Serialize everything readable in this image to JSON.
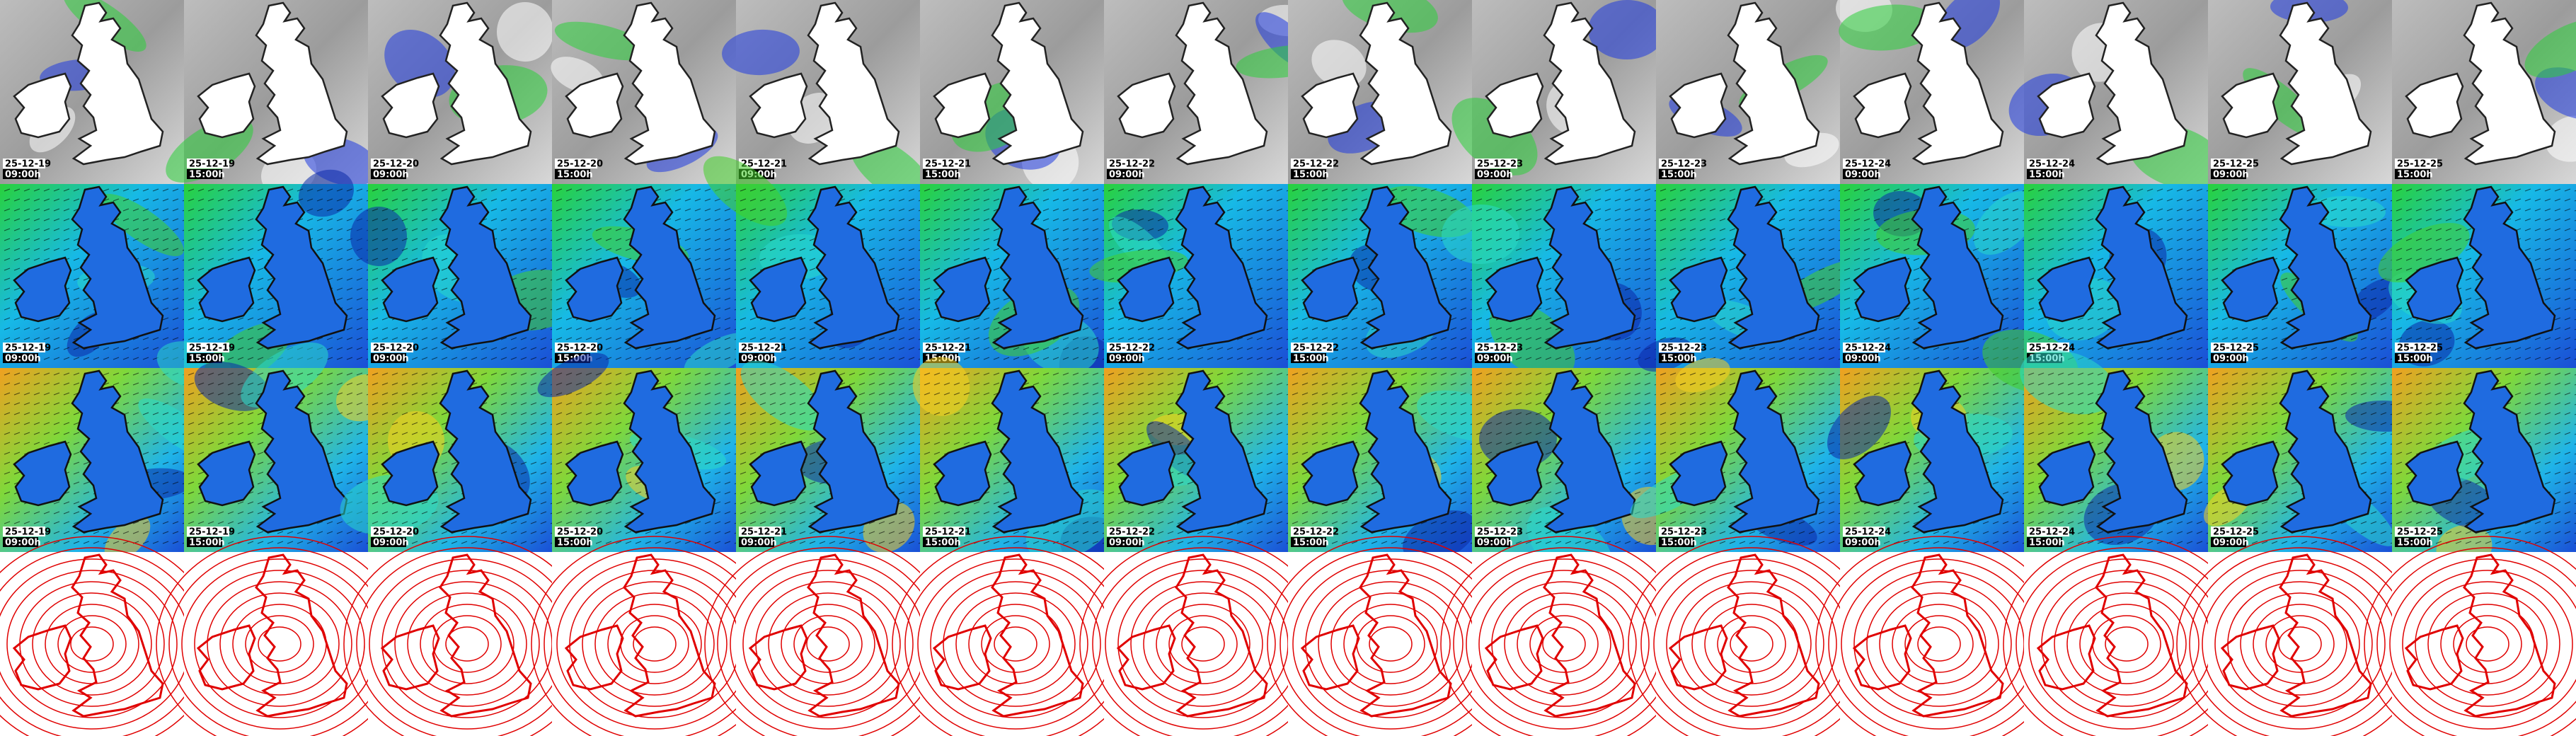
{
  "columns": [
    {
      "date": "25-12-19",
      "time": "09:00h"
    },
    {
      "date": "25-12-19",
      "time": "15:00h"
    },
    {
      "date": "25-12-20",
      "time": "09:00h"
    },
    {
      "date": "25-12-20",
      "time": "15:00h"
    },
    {
      "date": "25-12-21",
      "time": "09:00h"
    },
    {
      "date": "25-12-21",
      "time": "15:00h"
    },
    {
      "date": "25-12-22",
      "time": "09:00h"
    },
    {
      "date": "25-12-22",
      "time": "15:00h"
    },
    {
      "date": "25-12-23",
      "time": "09:00h"
    },
    {
      "date": "25-12-23",
      "time": "15:00h"
    },
    {
      "date": "25-12-24",
      "time": "09:00h"
    },
    {
      "date": "25-12-24",
      "time": "15:00h"
    },
    {
      "date": "25-12-25",
      "time": "09:00h"
    },
    {
      "date": "25-12-25",
      "time": "15:00h"
    }
  ]
}
